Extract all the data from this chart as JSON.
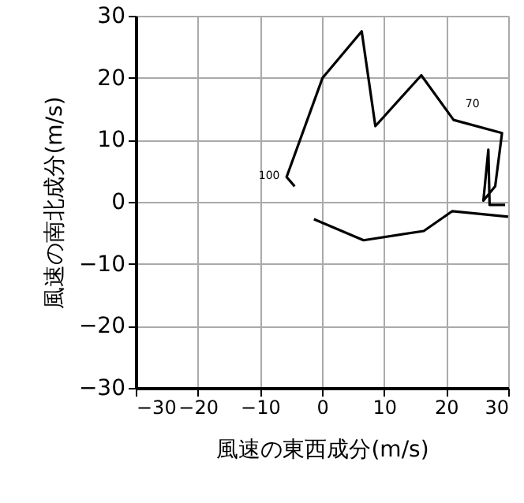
{
  "chart_data": {
    "type": "line",
    "xlabel": "風速の東西成分(m/s)",
    "ylabel": "風速の南北成分(m/s)",
    "xlim": [
      -30,
      30
    ],
    "ylim": [
      -30,
      30
    ],
    "xticks": [
      -30,
      -20,
      -10,
      0,
      10,
      20,
      30
    ],
    "yticks": [
      -30,
      -20,
      -10,
      0,
      10,
      20,
      30
    ],
    "grid": true,
    "marker": "none",
    "line_style": "solid",
    "series": [
      {
        "color": "#000000",
        "x": [
          -4.4,
          -5.7,
          0.1,
          6.4,
          8.6,
          16.0,
          21.2,
          29.0,
          27.9,
          26.0,
          26.8,
          27.0,
          29.5
        ],
        "values": [
          2.5,
          4.0,
          20.0,
          27.5,
          12.2,
          20.4,
          13.2,
          11.1,
          2.5,
          0.2,
          8.4,
          -0.5,
          -0.5
        ]
      },
      {
        "color": "#000000",
        "x": [
          -1.3,
          6.7,
          16.4,
          21.0,
          30.0
        ],
        "values": [
          -2.8,
          -6.2,
          -4.7,
          -1.5,
          -2.4
        ]
      }
    ],
    "annotations": [
      {
        "text": "100",
        "x": -5.7,
        "y": 4.0
      },
      {
        "text": "70",
        "x": 21.2,
        "y": 13.2
      }
    ]
  }
}
